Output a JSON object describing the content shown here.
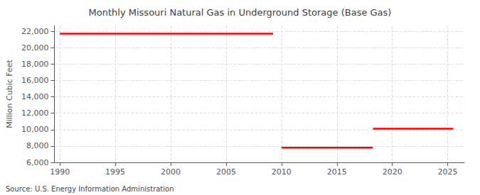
{
  "chart_data": {
    "type": "line",
    "title": "Monthly Missouri Natural Gas in Underground Storage (Base Gas)",
    "ylabel": "Million Cubic Feet",
    "annotation": "Source: U.S. Energy Information Administration",
    "color": "#ff0000",
    "segments": [
      {
        "x_start": 1990.0,
        "x_end": 2009.25,
        "y": 21700
      },
      {
        "x_start": 2010.0,
        "x_end": 2018.25,
        "y": 7800
      },
      {
        "x_start": 2018.25,
        "x_end": 2025.5,
        "y": 10100
      }
    ],
    "xlim": [
      1989.5,
      2026.5
    ],
    "ylim": [
      6000,
      22700
    ],
    "xticks": [
      1990,
      1995,
      2000,
      2005,
      2010,
      2015,
      2020,
      2025
    ],
    "yticks": [
      {
        "value": 6000,
        "label": "6,000"
      },
      {
        "value": 8000,
        "label": "8,000"
      },
      {
        "value": 10000,
        "label": "10,000"
      },
      {
        "value": 12000,
        "label": "12,000"
      },
      {
        "value": 14000,
        "label": "14,000"
      },
      {
        "value": 16000,
        "label": "16,000"
      },
      {
        "value": 18000,
        "label": "18,000"
      },
      {
        "value": 20000,
        "label": "20,000"
      },
      {
        "value": 22000,
        "label": "22,000"
      }
    ],
    "grid": true
  }
}
